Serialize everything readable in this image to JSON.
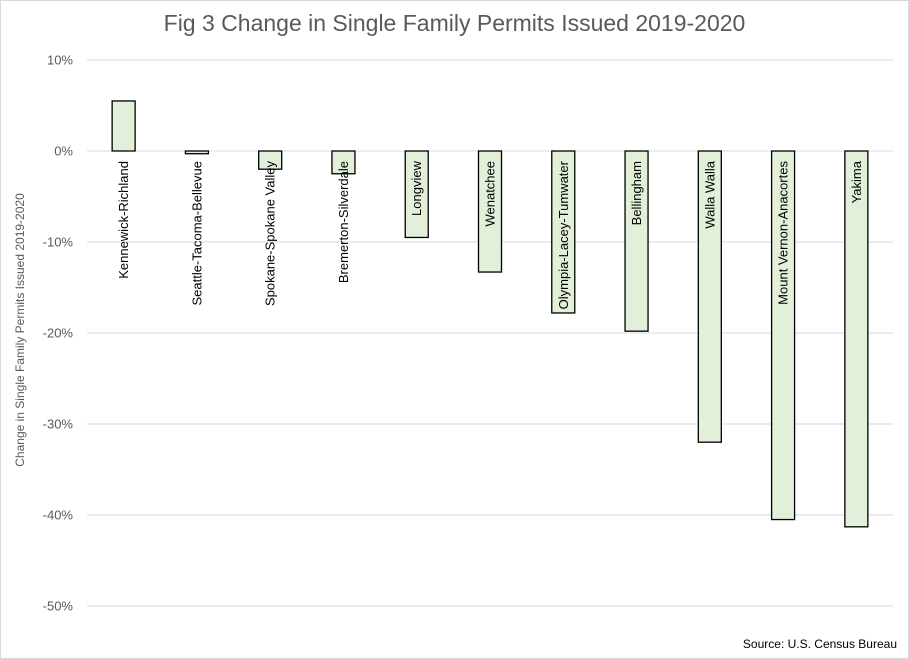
{
  "chart_data": {
    "type": "bar",
    "title": "Fig 3 Change in Single Family Permits Issued 2019-2020",
    "ylabel": "Change in Single Family Permits Issued 2019-2020",
    "source": "Source: U.S. Census Bureau",
    "ylim": [
      -50,
      10
    ],
    "yticks": [
      10,
      0,
      -10,
      -20,
      -30,
      -40,
      -50
    ],
    "ytick_labels": [
      "10%",
      "0%",
      "-10%",
      "-20%",
      "-30%",
      "-40%",
      "-50%"
    ],
    "grid": true,
    "legend": "none",
    "categories": [
      "Kennewick-Richland",
      "Seattle-Tacoma-Bellevue",
      "Spokane-Spokane Valley",
      "Bremerton-Silverdale",
      "Longview",
      "Wenatchee",
      "Olympia-Lacey-Tumwater",
      "Bellingham",
      "Walla Walla",
      "Mount Vernon-Anacortes",
      "Yakima"
    ],
    "values": [
      5.5,
      -0.3,
      -2.0,
      -2.5,
      -9.5,
      -13.3,
      -17.8,
      -19.8,
      -32.0,
      -40.5,
      -41.3
    ],
    "colors": {
      "bar_fill": "#e2efd9",
      "bar_stroke": "#000000",
      "grid": "#d9d9d9"
    }
  }
}
